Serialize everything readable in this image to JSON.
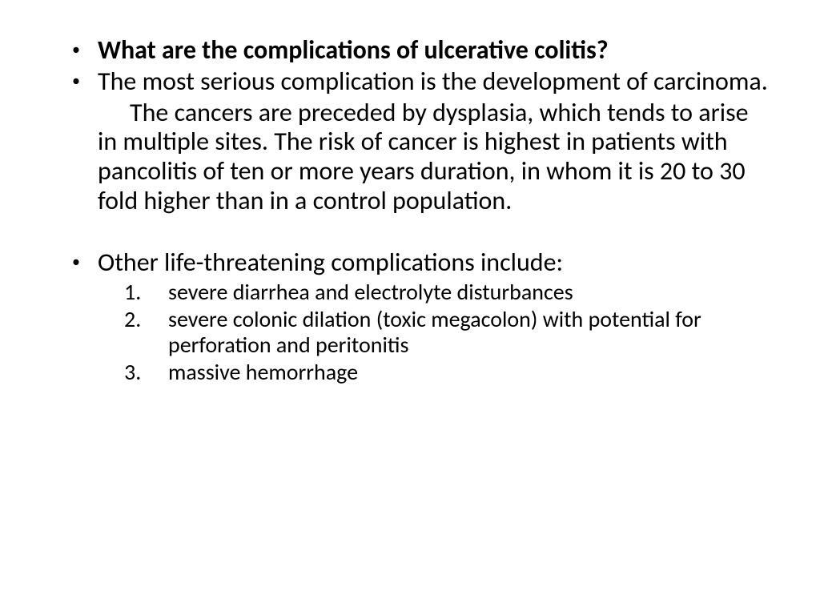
{
  "slide": {
    "bullets": [
      {
        "text": "What are the complications of ulcerative colitis?",
        "bold": true
      },
      {
        "text": "The most serious complication is the development of carcinoma.",
        "bold": false
      }
    ],
    "paragraph": "The cancers are preceded by dysplasia, which tends to arise in multiple sites. The risk of cancer is highest in patients with pancolitis of ten or more years duration, in whom it is 20 to 30 fold higher than in a control population.",
    "bullet3": "Other life-threatening complications include:",
    "numbered": [
      {
        "n": "1.",
        "text": "severe diarrhea and electrolyte disturbances"
      },
      {
        "n": "2.",
        "text": "severe colonic dilation (toxic megacolon) with potential for perforation and peritonitis"
      },
      {
        "n": "3.",
        "text": "massive hemorrhage"
      }
    ]
  },
  "style": {
    "background": "#ffffff",
    "text_color": "#000000",
    "body_fontsize": 32,
    "sub_fontsize": 28
  }
}
